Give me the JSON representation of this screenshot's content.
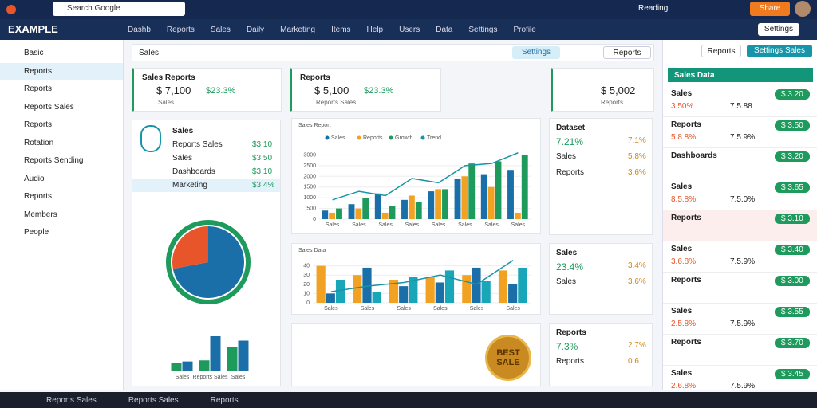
{
  "topbar": {
    "search": "Search Google",
    "user": "Reading",
    "button": "Share"
  },
  "brand": "EXAMPLE",
  "nav": [
    "Dashb",
    "Reports",
    "Sales",
    "Daily",
    "Marketing",
    "Items",
    "Help",
    "Users",
    "Data",
    "Settings",
    "Profile"
  ],
  "nav_button": "Settings",
  "sidebar": [
    "Basic",
    "Reports",
    "Reports",
    "Reports Sales",
    "Reports",
    "Rotation",
    "Reports Sending",
    "Audio",
    "Reports",
    "Members",
    "People"
  ],
  "toolbar": {
    "tabs": "Sales",
    "button": "Settings",
    "select": "Reports"
  },
  "kpis": [
    {
      "title": "Sales Reports",
      "value": "$ 7,100",
      "change": "$23.3%",
      "sub": "Sales"
    },
    {
      "title": "Reports",
      "value": "$ 5,100",
      "change": "$23.3%",
      "sub": "Reports Sales"
    },
    {
      "value": "$ 5,002",
      "sub": "Reports"
    }
  ],
  "sales_list": {
    "title": "Sales",
    "rows": [
      {
        "label": "Reports Sales",
        "value": "$3.10"
      },
      {
        "label": "Sales",
        "value": "$3.50"
      },
      {
        "label": "Dashboards",
        "value": "$3.10"
      },
      {
        "label": "Marketing",
        "value": "$3.4%"
      }
    ]
  },
  "chart_data": [
    {
      "type": "bar",
      "title": "Sales Report",
      "categories": [
        "Sales",
        "Sales",
        "Sales",
        "Sales",
        "Sales",
        "Sales",
        "Sales",
        "Sales"
      ],
      "ylim": [
        0,
        3500
      ],
      "yticks": [
        0,
        500,
        1000,
        1500,
        2000,
        2500,
        3000
      ],
      "series": [
        {
          "name": "Sales",
          "color": "#1b6fa8",
          "values": [
            400,
            700,
            1200,
            900,
            1300,
            1900,
            2100,
            2300
          ]
        },
        {
          "name": "Reports",
          "color": "#f2a222",
          "values": [
            300,
            500,
            300,
            1100,
            1400,
            2000,
            1500,
            300
          ]
        },
        {
          "name": "Growth",
          "color": "#1e9a5c",
          "values": [
            500,
            1000,
            600,
            800,
            1400,
            2600,
            2700,
            3000
          ]
        },
        {
          "name": "Trend",
          "type": "line",
          "color": "#1795a8",
          "values": [
            900,
            1300,
            1100,
            1900,
            1700,
            2500,
            2600,
            3100
          ]
        }
      ]
    },
    {
      "type": "bar",
      "title": "Sales Data",
      "categories": [
        "Sales",
        "Sales",
        "Sales",
        "Sales",
        "Sales",
        "Sales"
      ],
      "ylim": [
        0,
        50
      ],
      "yticks": [
        0,
        10,
        20,
        30,
        40
      ],
      "series": [
        {
          "name": "Sales",
          "color": "#f2a222",
          "values": [
            40,
            30,
            25,
            28,
            30,
            35
          ]
        },
        {
          "name": "Reports",
          "color": "#1b6fa8",
          "values": [
            10,
            38,
            18,
            22,
            38,
            20
          ]
        },
        {
          "name": "Growth",
          "color": "#19a6b8",
          "values": [
            25,
            12,
            28,
            35,
            24,
            38
          ]
        },
        {
          "name": "Trend",
          "type": "line",
          "color": "#1795a8",
          "values": [
            12,
            18,
            22,
            30,
            20,
            46
          ]
        }
      ]
    },
    {
      "type": "pie",
      "values": [
        72,
        28
      ],
      "colors": [
        "#1b6fa8",
        "#e8552a"
      ]
    },
    {
      "type": "bar",
      "categories": [
        "Sales",
        "Reports Sales",
        "Sales"
      ],
      "ylim": [
        0,
        40
      ],
      "series": [
        {
          "name": "Sales",
          "color": "#1e9a5c",
          "values": [
            8,
            10,
            22
          ]
        },
        {
          "name": "Reports",
          "color": "#1b6fa8",
          "values": [
            9,
            32,
            28
          ]
        }
      ]
    }
  ],
  "badge": {
    "line1": "BEST",
    "line2": "SALE"
  },
  "stat_cards": [
    {
      "title": "Dataset",
      "rows": [
        {
          "label": "7.21%",
          "value": "7.1%"
        },
        {
          "label": "Sales",
          "value": "5.8%"
        },
        {
          "label": "Reports",
          "value": "3.6%"
        }
      ]
    },
    {
      "title": "Sales",
      "rows": [
        {
          "label": "23.4%",
          "value": "3.4%"
        },
        {
          "label": "Sales",
          "value": "3.6%"
        }
      ]
    },
    {
      "title": "Reports",
      "rows": [
        {
          "label": "7.3%",
          "value": "2.7%"
        },
        {
          "label": "Reports",
          "value": "0.6"
        }
      ]
    }
  ],
  "panel": {
    "button1": "Reports",
    "button2": "Settings Sales",
    "title": "Sales Data",
    "rows": [
      {
        "name": "Sales",
        "value": "3.50%",
        "mid": "7.5.88",
        "badge": "$ 3.20"
      },
      {
        "name": "Reports",
        "value": "5.8.8%",
        "mid": "7.5.9%",
        "badge": "$ 3.50"
      },
      {
        "name": "Dashboards",
        "value": "",
        "mid": "",
        "badge": "$ 3.20"
      },
      {
        "name": "Sales",
        "value": "8.5.8%",
        "mid": "7.5.0%",
        "badge": "$ 3.65"
      },
      {
        "name": "Reports",
        "value": "",
        "mid": "",
        "badge": "$ 3.10"
      },
      {
        "name": "Sales",
        "value": "3.6.8%",
        "mid": "7.5.9%",
        "badge": "$ 3.40"
      },
      {
        "name": "Reports",
        "value": "",
        "mid": "",
        "badge": "$ 3.00"
      },
      {
        "name": "Sales",
        "value": "2.5.8%",
        "mid": "7.5.9%",
        "badge": "$ 3.55"
      },
      {
        "name": "Reports",
        "value": "",
        "mid": "",
        "badge": "$ 3.70"
      },
      {
        "name": "Sales",
        "value": "2.6.8%",
        "mid": "7.5.9%",
        "badge": "$ 3.45"
      }
    ]
  },
  "taskbar": [
    "Reports Sales",
    "Reports Sales",
    "Reports"
  ]
}
